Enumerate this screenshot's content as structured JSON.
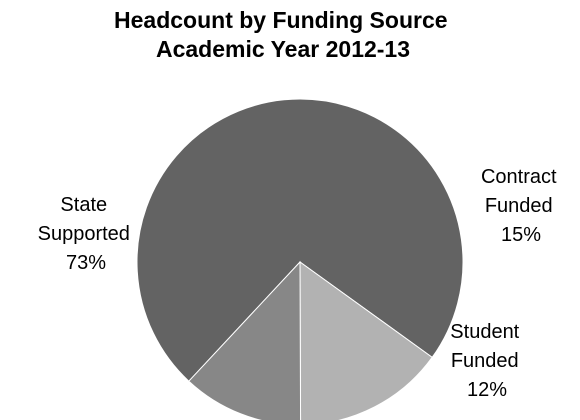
{
  "chart_data": {
    "type": "pie",
    "title": [
      "Headcount by Funding Source",
      "Academic Year 2012-13"
    ],
    "slices": [
      {
        "label": [
          "State",
          "Supported",
          "73%"
        ],
        "value": 73,
        "color": "#636363"
      },
      {
        "label": [
          "Contract",
          "Funded",
          "15%"
        ],
        "value": 15,
        "color": "#b2b2b2"
      },
      {
        "label": [
          "Student",
          "Funded",
          "12%"
        ],
        "value": 12,
        "color": "#878787"
      }
    ],
    "legend": "none"
  }
}
